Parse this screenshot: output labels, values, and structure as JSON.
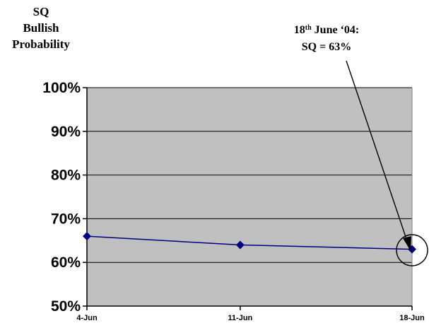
{
  "chart_data": {
    "type": "line",
    "ylabel_lines": [
      "SQ",
      "Bullish",
      "Probability"
    ],
    "categories": [
      "4-Jun",
      "11-Jun",
      "18-Jun"
    ],
    "x_positions": [
      4,
      10.6,
      18
    ],
    "series": [
      {
        "values": [
          66,
          64,
          63
        ],
        "color": "#000080"
      }
    ],
    "ylim": [
      50,
      100
    ],
    "yticks": [
      "50%",
      "60%",
      "70%",
      "80%",
      "90%",
      "100%"
    ],
    "ytick_values": [
      50,
      60,
      70,
      80,
      90,
      100
    ],
    "grid": true,
    "plot_background": "#c0c0c0",
    "annotation": {
      "line1_prefix": "18",
      "line1_sup": "th",
      "line1_suffix": " June ‘04:",
      "line2": "SQ = 63%",
      "target_index": 2
    }
  }
}
